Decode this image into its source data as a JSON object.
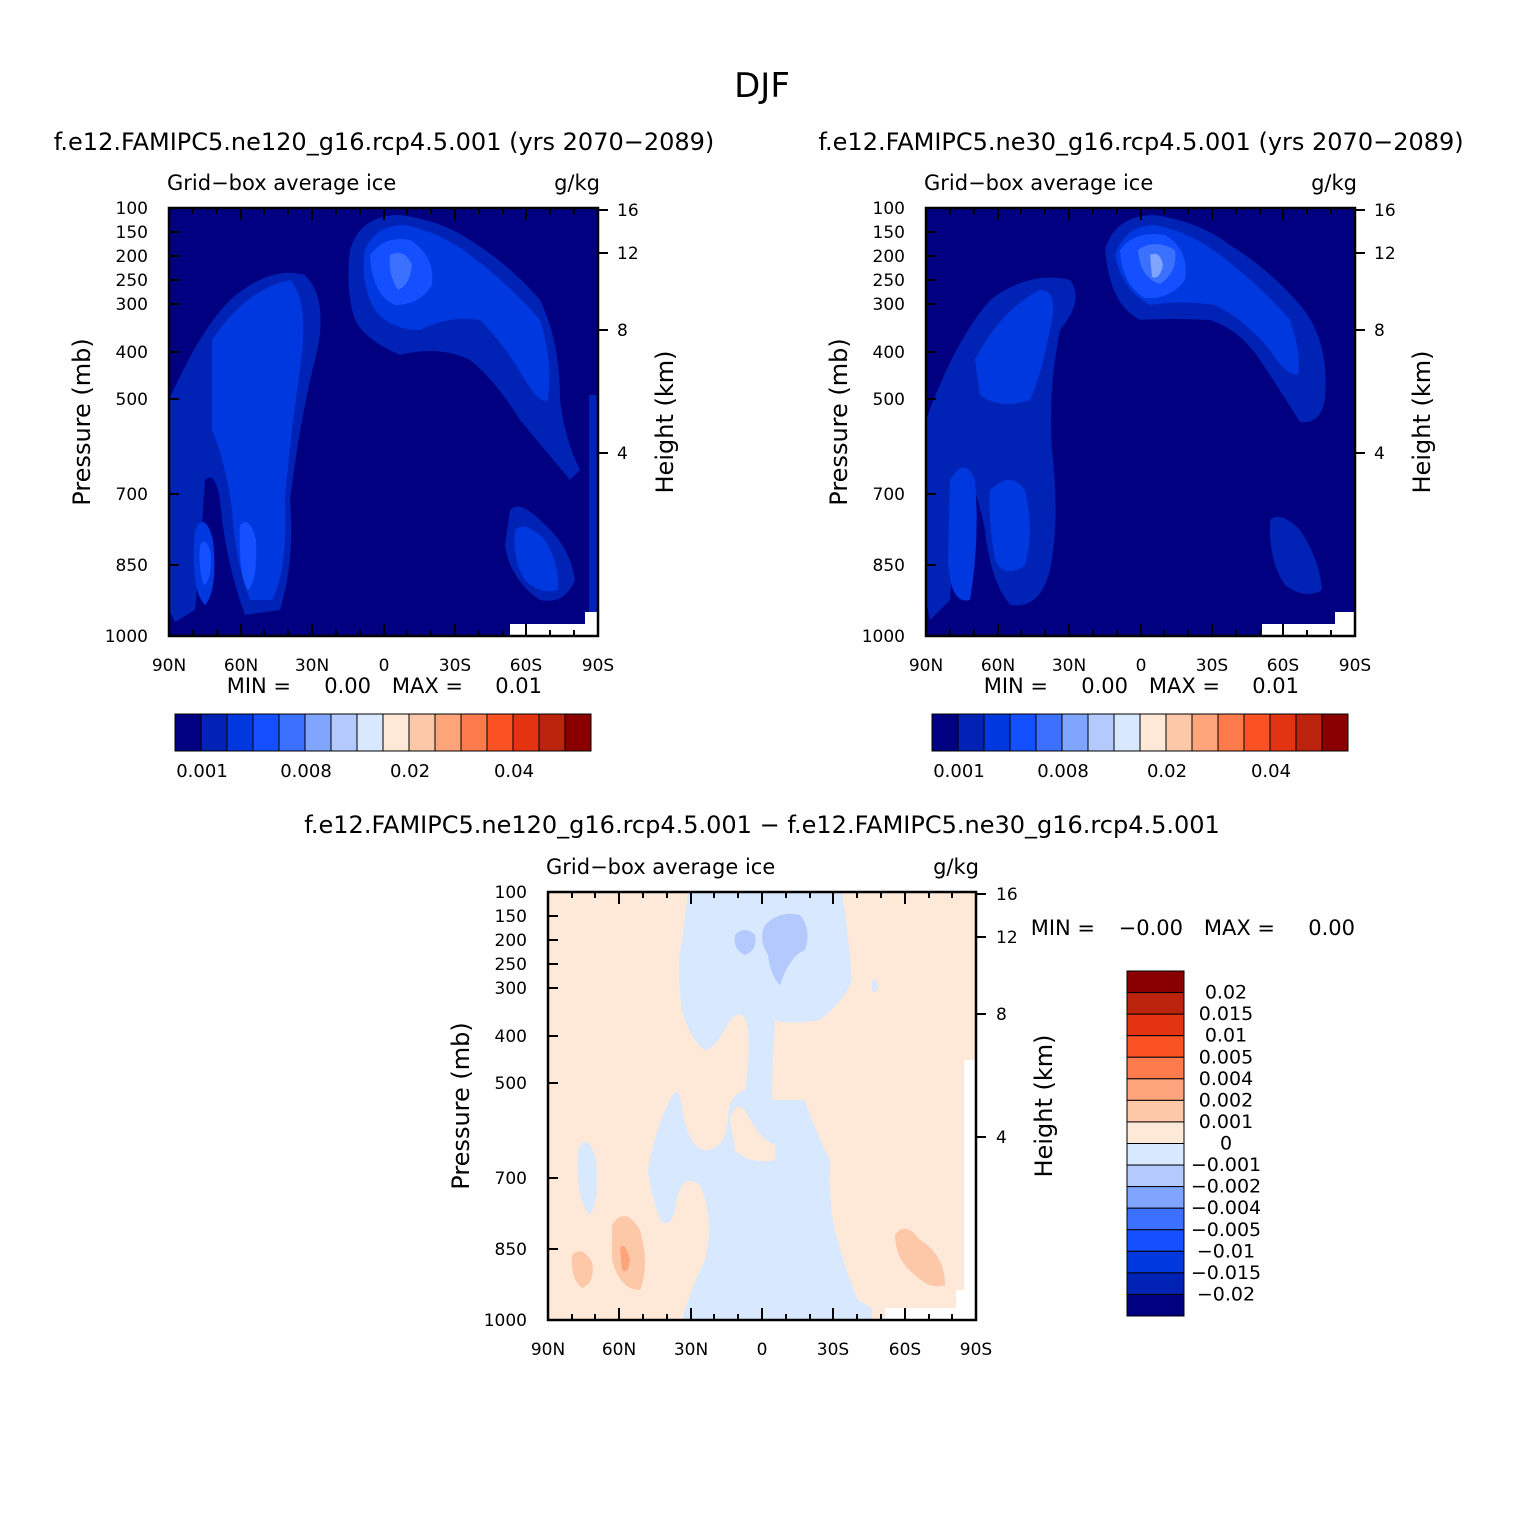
{
  "page": {
    "title": "DJF"
  },
  "palette": {
    "abs": [
      "#000080",
      "#0022b5",
      "#0038e0",
      "#1450ff",
      "#3c70ff",
      "#80a5ff",
      "#b4caff",
      "#d8e8ff",
      "#fee9d8",
      "#fdc8a8",
      "#fda47a",
      "#fc7a4c",
      "#fb5224",
      "#e33310",
      "#bb230c",
      "#8a0000"
    ],
    "diff": [
      "#000080",
      "#0022b5",
      "#0038e0",
      "#1450ff",
      "#3c70ff",
      "#80a5ff",
      "#b4caff",
      "#d8e8ff",
      "#fee9d8",
      "#fdc8a8",
      "#fda47a",
      "#fc7a4c",
      "#fb5224",
      "#e33310",
      "#bb230c",
      "#8a0000"
    ]
  },
  "chart_data": [
    {
      "type": "heatmap",
      "title": "f.e12.FAMIPC5.ne120_g16.rcp4.5.001 (yrs 2070−2089)",
      "subtitle_left": "Grid−box average ice",
      "subtitle_right": "g/kg",
      "ylabel": "Pressure (mb)",
      "ylabel_right": "Height (km)",
      "x_ticks": [
        "90N",
        "60N",
        "30N",
        "0",
        "30S",
        "60S",
        "90S"
      ],
      "y_ticks": [
        "100",
        "150",
        "200",
        "250",
        "300",
        "400",
        "500",
        "700",
        "850",
        "1000"
      ],
      "y_right_ticks": [
        "16",
        "12",
        "8",
        "4"
      ],
      "minmax": {
        "min_label": "MIN =",
        "min": "0.00",
        "max_label": "MAX =",
        "max": "0.01"
      },
      "colorbar_labels": [
        "0.001",
        "0.008",
        "0.02",
        "0.04"
      ]
    },
    {
      "type": "heatmap",
      "title": "f.e12.FAMIPC5.ne30_g16.rcp4.5.001 (yrs 2070−2089)",
      "subtitle_left": "Grid−box average ice",
      "subtitle_right": "g/kg",
      "ylabel": "Pressure (mb)",
      "ylabel_right": "Height (km)",
      "x_ticks": [
        "90N",
        "60N",
        "30N",
        "0",
        "30S",
        "60S",
        "90S"
      ],
      "y_ticks": [
        "100",
        "150",
        "200",
        "250",
        "300",
        "400",
        "500",
        "700",
        "850",
        "1000"
      ],
      "y_right_ticks": [
        "16",
        "12",
        "8",
        "4"
      ],
      "minmax": {
        "min_label": "MIN =",
        "min": "0.00",
        "max_label": "MAX =",
        "max": "0.01"
      },
      "colorbar_labels": [
        "0.001",
        "0.008",
        "0.02",
        "0.04"
      ]
    },
    {
      "type": "heatmap",
      "title": "f.e12.FAMIPC5.ne120_g16.rcp4.5.001 − f.e12.FAMIPC5.ne30_g16.rcp4.5.001",
      "subtitle_left": "Grid−box average ice",
      "subtitle_right": "g/kg",
      "ylabel": "Pressure (mb)",
      "ylabel_right": "Height (km)",
      "x_ticks": [
        "90N",
        "60N",
        "30N",
        "0",
        "30S",
        "60S",
        "90S"
      ],
      "y_ticks": [
        "100",
        "150",
        "200",
        "250",
        "300",
        "400",
        "500",
        "700",
        "850",
        "1000"
      ],
      "y_right_ticks": [
        "16",
        "12",
        "8",
        "4"
      ],
      "minmax": {
        "min_label": "MIN =",
        "min": "−0.00",
        "max_label": "MAX =",
        "max": "0.00"
      },
      "colorbar_labels": [
        "0.02",
        "0.015",
        "0.01",
        "0.005",
        "0.004",
        "0.002",
        "0.001",
        "0",
        "−0.001",
        "−0.002",
        "−0.004",
        "−0.005",
        "−0.01",
        "−0.015",
        "−0.02"
      ]
    }
  ]
}
